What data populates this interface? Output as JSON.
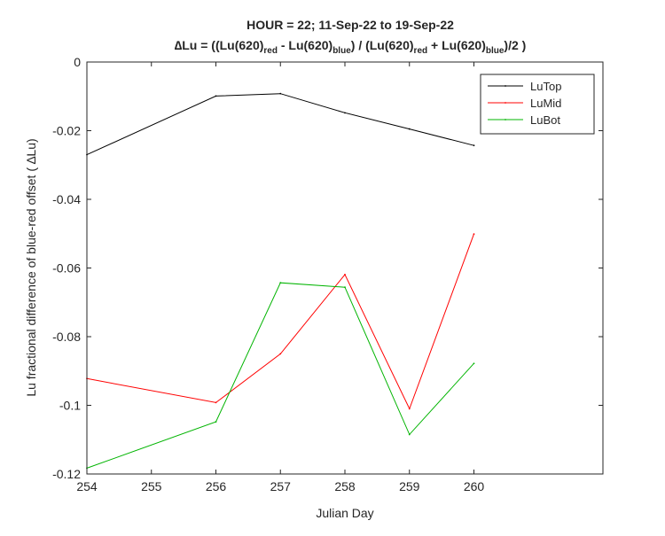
{
  "chart_data": {
    "type": "line",
    "title_line1": "HOUR = 22; 11-Sep-22 to 19-Sep-22",
    "title_line2": {
      "prefix": "∆Lu = ((Lu(620)",
      "sub1": "red",
      "mid1": " - Lu(620)",
      "sub2": "blue",
      "mid2": ") / (Lu(620)",
      "sub3": "red",
      "mid3": " + Lu(620)",
      "sub4": "blue",
      "suffix": ")/2  )"
    },
    "xlabel": "Julian Day",
    "ylabel": "Lu fractional difference of blue-red offset (  ∆Lu)",
    "xlim": [
      254,
      262
    ],
    "ylim": [
      -0.12,
      0
    ],
    "xticks": [
      254,
      255,
      256,
      257,
      258,
      259,
      260
    ],
    "xtick_labels": [
      "254",
      "255",
      "256",
      "257",
      "258",
      "259",
      "260"
    ],
    "yticks": [
      0,
      -0.02,
      -0.04,
      -0.06,
      -0.08,
      -0.1,
      -0.12
    ],
    "ytick_labels": [
      "0",
      "-0.02",
      "-0.04",
      "-0.06",
      "-0.08",
      "-0.1",
      "-0.12"
    ],
    "grid": false,
    "legend_position": "top-right",
    "x": [
      254,
      256,
      257,
      258,
      259,
      260
    ],
    "series": [
      {
        "name": "LuTop",
        "color": "#000000",
        "values": [
          -0.027,
          -0.0099,
          -0.0092,
          -0.0148,
          -0.0195,
          -0.0243
        ]
      },
      {
        "name": "LuMid",
        "color": "#ff0000",
        "values": [
          -0.0922,
          -0.0992,
          -0.085,
          -0.0619,
          -0.101,
          -0.0501
        ]
      },
      {
        "name": "LuBot",
        "color": "#00b400",
        "values": [
          -0.1183,
          -0.1048,
          -0.0643,
          -0.0656,
          -0.1085,
          -0.0878
        ]
      }
    ]
  }
}
